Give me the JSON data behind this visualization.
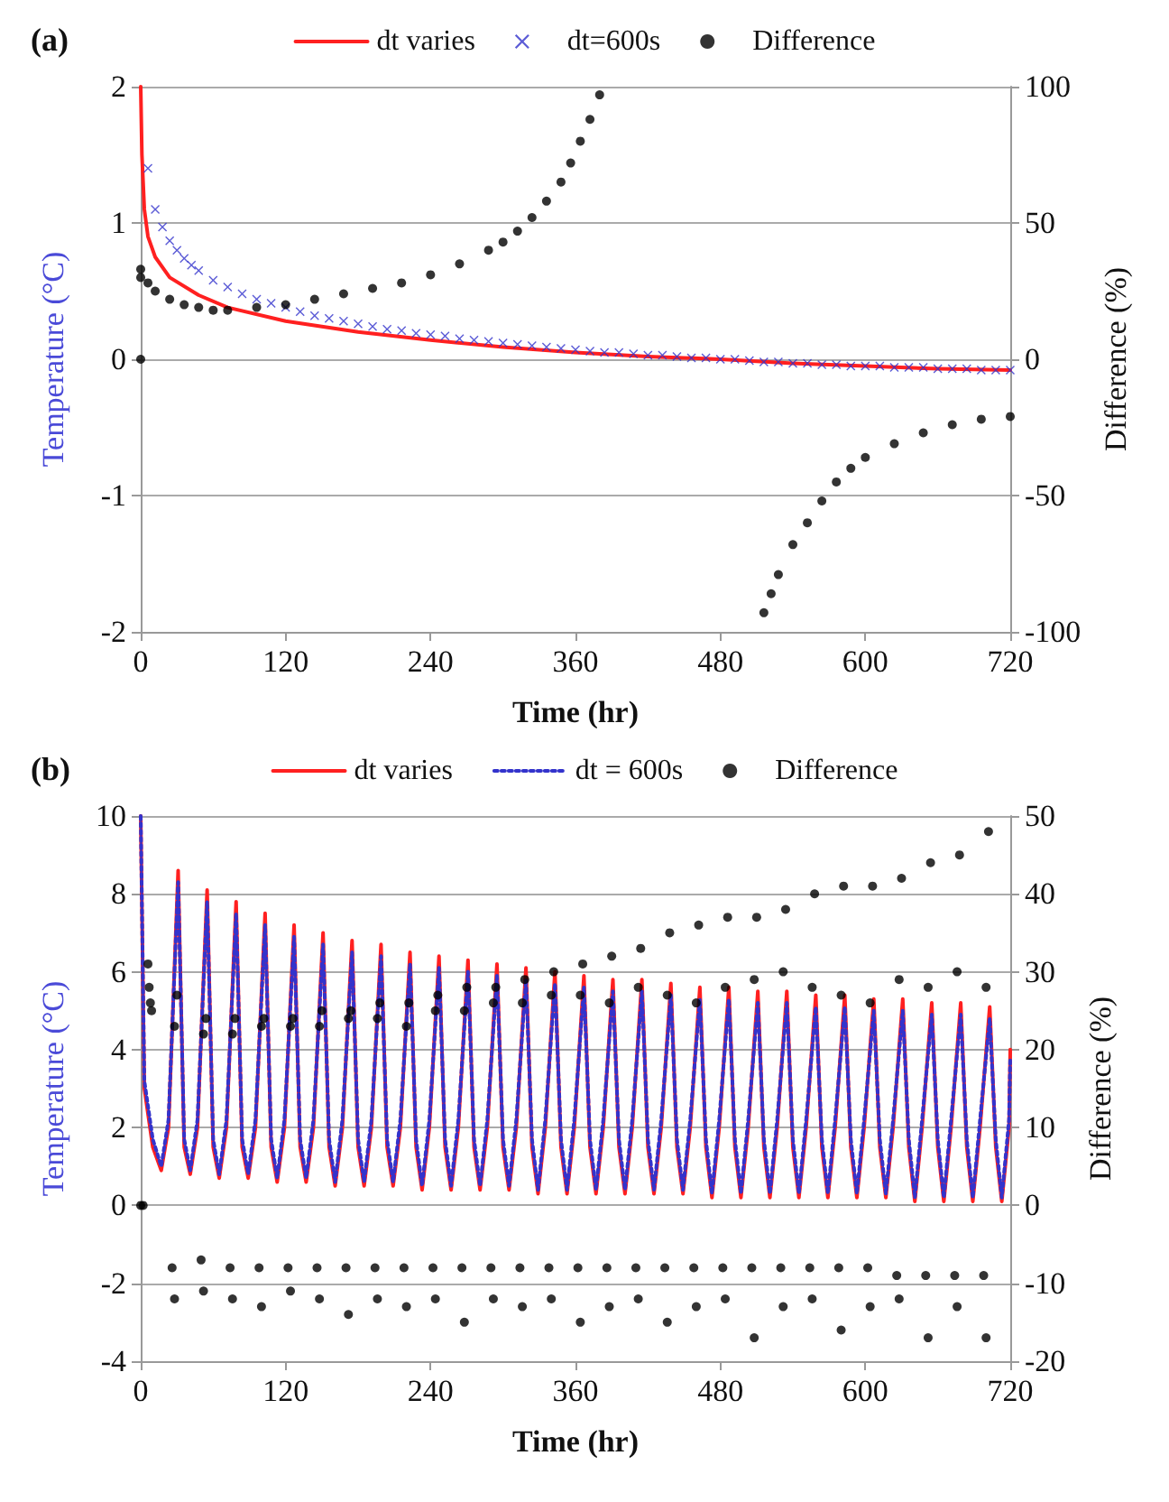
{
  "chart_data": [
    {
      "type": "line",
      "title": "(a)",
      "xlabel": "Time (hr)",
      "ylabel": "Temperature (°C)",
      "y2label": "Difference (%)",
      "xlim": [
        0,
        720
      ],
      "xticks": [
        0,
        120,
        240,
        360,
        480,
        600,
        720
      ],
      "ylim": [
        -2,
        2
      ],
      "yticks": [
        -2,
        -1,
        0,
        1,
        2
      ],
      "y2lim": [
        -100,
        100
      ],
      "y2ticks": [
        -100,
        -50,
        0,
        50,
        100
      ],
      "grid": "y",
      "legend": "top",
      "series": [
        {
          "name": "dt varies",
          "color": "#ff2020",
          "marker": "none",
          "line_style": "solid",
          "x": [
            0,
            1,
            3,
            6,
            12,
            24,
            48,
            72,
            120,
            180,
            240,
            300,
            360,
            420,
            480,
            540,
            600,
            660,
            720
          ],
          "values": [
            2,
            1.5,
            1.1,
            0.9,
            0.75,
            0.6,
            0.47,
            0.38,
            0.28,
            0.2,
            0.14,
            0.09,
            0.05,
            0.02,
            0,
            -0.03,
            -0.05,
            -0.07,
            -0.08
          ]
        },
        {
          "name": "dt=600s",
          "type": "scatter",
          "color": "#3333cc",
          "marker": "cross",
          "x": [
            6,
            12,
            18,
            24,
            30,
            36,
            42,
            48,
            60,
            72,
            84,
            96,
            108,
            120,
            132,
            144,
            156,
            168,
            180,
            192,
            204,
            216,
            228,
            240,
            252,
            264,
            276,
            288,
            300,
            312,
            324,
            336,
            348,
            360,
            372,
            384,
            396,
            408,
            420,
            432,
            444,
            456,
            468,
            480,
            492,
            504,
            516,
            528,
            540,
            552,
            564,
            576,
            588,
            600,
            612,
            624,
            636,
            648,
            660,
            672,
            684,
            696,
            708,
            720
          ],
          "values": [
            1.4,
            1.1,
            0.97,
            0.87,
            0.8,
            0.74,
            0.69,
            0.65,
            0.58,
            0.53,
            0.48,
            0.44,
            0.41,
            0.38,
            0.35,
            0.32,
            0.3,
            0.28,
            0.26,
            0.24,
            0.22,
            0.21,
            0.19,
            0.18,
            0.17,
            0.15,
            0.14,
            0.13,
            0.12,
            0.11,
            0.1,
            0.09,
            0.08,
            0.07,
            0.06,
            0.05,
            0.05,
            0.04,
            0.03,
            0.03,
            0.02,
            0.01,
            0.01,
            0,
            0,
            -0.01,
            -0.02,
            -0.02,
            -0.03,
            -0.03,
            -0.04,
            -0.04,
            -0.05,
            -0.05,
            -0.05,
            -0.06,
            -0.06,
            -0.06,
            -0.07,
            -0.07,
            -0.07,
            -0.08,
            -0.08,
            -0.08
          ]
        },
        {
          "name": "Difference",
          "type": "scatter",
          "axis": "y2",
          "color": "#000000",
          "marker": "circle",
          "x": [
            0,
            0,
            0,
            6,
            12,
            24,
            36,
            48,
            60,
            72,
            96,
            120,
            144,
            168,
            192,
            216,
            240,
            264,
            288,
            300,
            312,
            324,
            336,
            348,
            356,
            364,
            372,
            380,
            516,
            522,
            528,
            540,
            552,
            564,
            576,
            588,
            600,
            624,
            648,
            672,
            696,
            720
          ],
          "values": [
            0,
            33,
            30,
            28,
            25,
            22,
            20,
            19,
            18,
            18,
            19,
            20,
            22,
            24,
            26,
            28,
            31,
            35,
            40,
            43,
            47,
            52,
            58,
            65,
            72,
            80,
            88,
            97,
            -93,
            -86,
            -79,
            -68,
            -60,
            -52,
            -45,
            -40,
            -36,
            -31,
            -27,
            -24,
            -22,
            -21
          ]
        }
      ]
    },
    {
      "type": "line",
      "title": "(b)",
      "xlabel": "Time (hr)",
      "ylabel": "Temperature (°C)",
      "y2label": "Difference (%)",
      "xlim": [
        0,
        720
      ],
      "xticks": [
        0,
        120,
        240,
        360,
        480,
        600,
        720
      ],
      "ylim": [
        -4,
        10
      ],
      "yticks": [
        -4,
        -2,
        0,
        2,
        4,
        6,
        8,
        10
      ],
      "y2lim": [
        -20,
        50
      ],
      "y2ticks": [
        -20,
        -10,
        0,
        10,
        20,
        30,
        40,
        50
      ],
      "grid": "y",
      "legend": "top",
      "x": [
        0,
        3,
        10,
        17,
        23,
        31,
        36,
        41,
        47,
        55,
        60,
        65,
        71,
        79,
        84,
        89,
        95,
        103,
        108,
        113,
        119,
        127,
        132,
        137,
        143,
        151,
        156,
        161,
        167,
        175,
        180,
        185,
        191,
        199,
        204,
        209,
        215,
        223,
        228,
        233,
        239,
        247,
        252,
        257,
        263,
        271,
        276,
        281,
        287,
        295,
        300,
        305,
        311,
        319,
        324,
        329,
        335,
        343,
        348,
        353,
        359,
        367,
        372,
        377,
        383,
        391,
        396,
        401,
        407,
        415,
        420,
        425,
        431,
        439,
        444,
        449,
        455,
        463,
        468,
        473,
        479,
        487,
        492,
        497,
        503,
        511,
        516,
        521,
        527,
        535,
        540,
        545,
        551,
        559,
        564,
        569,
        575,
        583,
        588,
        593,
        599,
        607,
        612,
        617,
        623,
        631,
        636,
        641,
        647,
        655,
        660,
        665,
        671,
        679,
        684,
        689,
        695,
        703,
        708,
        713,
        719,
        720
      ],
      "series": [
        {
          "name": "dt varies",
          "color": "#ff2020",
          "marker": "none",
          "line_style": "solid",
          "values": [
            10,
            3,
            1.5,
            0.9,
            2,
            8.6,
            1.5,
            0.8,
            2,
            8.1,
            1.5,
            0.7,
            2,
            7.8,
            1.5,
            0.7,
            2,
            7.5,
            1.5,
            0.6,
            2,
            7.2,
            1.5,
            0.6,
            2,
            7.0,
            1.5,
            0.5,
            2,
            6.8,
            1.5,
            0.5,
            2,
            6.7,
            1.5,
            0.5,
            2,
            6.5,
            1.5,
            0.4,
            2,
            6.4,
            1.5,
            0.4,
            2,
            6.3,
            1.5,
            0.4,
            2,
            6.2,
            1.5,
            0.4,
            2,
            6.1,
            1.5,
            0.3,
            2,
            6.0,
            1.5,
            0.3,
            2,
            5.9,
            1.5,
            0.3,
            2,
            5.8,
            1.5,
            0.3,
            2,
            5.8,
            1.5,
            0.3,
            2,
            5.7,
            1.5,
            0.3,
            2,
            5.6,
            1.5,
            0.2,
            2,
            5.6,
            1.5,
            0.2,
            2,
            5.5,
            1.5,
            0.2,
            2,
            5.5,
            1.5,
            0.2,
            2,
            5.4,
            1.5,
            0.2,
            2,
            5.4,
            1.5,
            0.2,
            2,
            5.3,
            1.5,
            0.2,
            2,
            5.3,
            1.5,
            0.1,
            2,
            5.2,
            1.5,
            0.1,
            2,
            5.2,
            1.5,
            0.1,
            2,
            5.1,
            1.5,
            0.1,
            2,
            4
          ]
        },
        {
          "name": "dt = 600s",
          "color": "#3333cc",
          "marker": "none",
          "line_style": "dotted",
          "values": [
            10,
            3.2,
            1.7,
            1.0,
            2.2,
            8.3,
            1.7,
            0.9,
            2.2,
            7.8,
            1.7,
            0.8,
            2.2,
            7.5,
            1.7,
            0.8,
            2.2,
            7.2,
            1.7,
            0.7,
            2.2,
            6.9,
            1.7,
            0.7,
            2.2,
            6.7,
            1.7,
            0.6,
            2.2,
            6.5,
            1.7,
            0.6,
            2.2,
            6.4,
            1.7,
            0.6,
            2.2,
            6.2,
            1.7,
            0.5,
            2.2,
            6.1,
            1.7,
            0.5,
            2.2,
            6.0,
            1.7,
            0.5,
            2.2,
            5.9,
            1.7,
            0.5,
            2.2,
            5.8,
            1.7,
            0.4,
            2.2,
            5.7,
            1.7,
            0.4,
            2.2,
            5.6,
            1.7,
            0.4,
            2.2,
            5.5,
            1.7,
            0.4,
            2.2,
            5.5,
            1.7,
            0.4,
            2.2,
            5.4,
            1.7,
            0.4,
            2.2,
            5.3,
            1.7,
            0.3,
            2.2,
            5.3,
            1.7,
            0.3,
            2.2,
            5.2,
            1.7,
            0.3,
            2.2,
            5.2,
            1.7,
            0.3,
            2.2,
            5.1,
            1.7,
            0.3,
            2.2,
            5.1,
            1.7,
            0.3,
            2.2,
            5.0,
            1.7,
            0.3,
            2.2,
            5.0,
            1.7,
            0.2,
            2.2,
            4.9,
            1.7,
            0.2,
            2.2,
            4.9,
            1.7,
            0.2,
            2.2,
            4.8,
            1.7,
            0.2,
            2.2,
            3.8
          ]
        },
        {
          "name": "Difference",
          "type": "scatter",
          "axis": "y2",
          "color": "#000000",
          "marker": "circle",
          "x": [
            0,
            2,
            6,
            7,
            8,
            9,
            26,
            28,
            28,
            30,
            50,
            52,
            52,
            54,
            74,
            76,
            76,
            78,
            98,
            100,
            100,
            102,
            122,
            124,
            124,
            126,
            146,
            148,
            148,
            150,
            170,
            172,
            172,
            174,
            194,
            196,
            196,
            198,
            218,
            220,
            220,
            222,
            242,
            244,
            244,
            246,
            266,
            268,
            268,
            270,
            290,
            292,
            292,
            294,
            314,
            316,
            316,
            318,
            338,
            340,
            340,
            342,
            362,
            364,
            364,
            366,
            386,
            388,
            388,
            390,
            410,
            412,
            412,
            414,
            434,
            436,
            436,
            438,
            458,
            460,
            460,
            462,
            482,
            484,
            484,
            486,
            506,
            508,
            508,
            510,
            530,
            532,
            532,
            534,
            554,
            556,
            556,
            558,
            578,
            580,
            580,
            582,
            602,
            604,
            604,
            606,
            626,
            628,
            628,
            630,
            650,
            652,
            652,
            654,
            674,
            676,
            676,
            678,
            698,
            700,
            700,
            702
          ],
          "values": [
            0,
            0,
            31,
            28,
            26,
            25,
            -8,
            -12,
            23,
            27,
            -7,
            -11,
            22,
            24,
            -8,
            -12,
            22,
            24,
            -8,
            -13,
            23,
            24,
            -8,
            -11,
            23,
            24,
            -8,
            -12,
            23,
            25,
            -8,
            -14,
            24,
            25,
            -8,
            -12,
            24,
            26,
            -8,
            -13,
            23,
            26,
            -8,
            -12,
            25,
            27,
            -8,
            -15,
            25,
            28,
            -8,
            -12,
            26,
            28,
            -8,
            -13,
            26,
            29,
            -8,
            -12,
            27,
            30,
            -8,
            -15,
            27,
            31,
            -8,
            -13,
            26,
            32,
            -8,
            -12,
            28,
            33,
            -8,
            -15,
            27,
            35,
            -8,
            -13,
            26,
            36,
            -8,
            -12,
            28,
            37,
            -8,
            -17,
            29,
            37,
            -8,
            -13,
            30,
            38,
            -8,
            -12,
            28,
            40,
            -8,
            -16,
            27,
            41,
            -8,
            -13,
            26,
            41,
            -9,
            -12,
            29,
            42,
            -9,
            -17,
            28,
            44,
            -9,
            -13,
            30,
            45,
            -9,
            -17,
            28,
            48
          ]
        }
      ]
    }
  ]
}
